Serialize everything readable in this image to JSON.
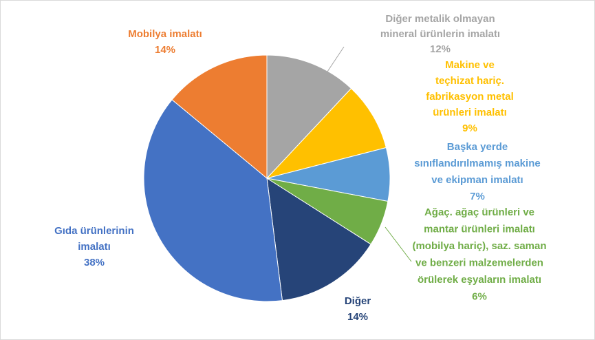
{
  "chart_data": {
    "type": "pie",
    "categories": [
      "Diğer metalik olmayan\nmineral ürünlerin imalatı",
      "Makine ve\nteçhizat hariç.\nfabrikasyon metal\nürünleri imalatı",
      "Başka yerde\nsınıflandırılmamış makine\nve ekipman imalatı",
      "Ağaç. ağaç ürünleri ve\nmantar ürünleri imalatı\n(mobilya hariç), saz. saman\nve benzeri malzemelerden\nörülerek eşyaların imalatı",
      "Diğer",
      "Gıda ürünlerinin\nimalatı",
      "Mobilya imalatı"
    ],
    "values": [
      12,
      9,
      7,
      6,
      14,
      38,
      14
    ],
    "value_labels": [
      "12%",
      "9%",
      "7%",
      "6%",
      "14%",
      "38%",
      "14%"
    ],
    "colors": [
      "#a5a5a5",
      "#ffc000",
      "#5b9bd5",
      "#70ad47",
      "#264478",
      "#4472c4",
      "#ed7d31"
    ]
  }
}
